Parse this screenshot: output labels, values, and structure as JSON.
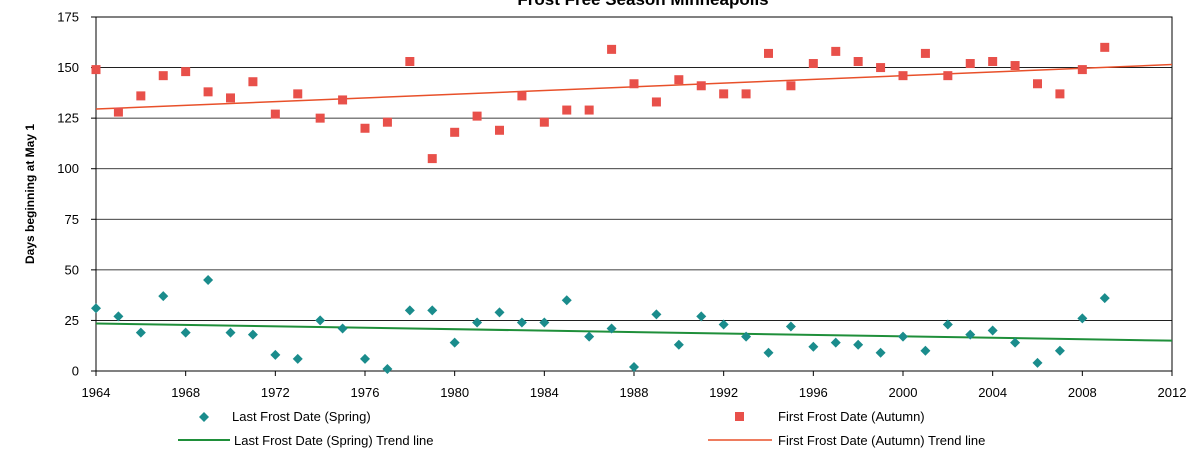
{
  "chart_data": {
    "type": "scatter",
    "title": "Frost Free Season Minneapolis",
    "xlabel": "",
    "ylabel": "Days beginning at May 1",
    "xlim": [
      1964,
      2012
    ],
    "ylim": [
      0,
      175
    ],
    "x_ticks": [
      1964,
      1968,
      1972,
      1976,
      1980,
      1984,
      1988,
      1992,
      1996,
      2000,
      2004,
      2008,
      2012
    ],
    "y_ticks": [
      0,
      25,
      50,
      75,
      100,
      125,
      150,
      175
    ],
    "grid": "horizontal",
    "legend_position": "bottom",
    "series": [
      {
        "name": "Last Frost Date (Spring)",
        "marker": "diamond",
        "color": "#1a8c8c",
        "points": [
          [
            1964,
            31
          ],
          [
            1965,
            27
          ],
          [
            1966,
            19
          ],
          [
            1967,
            37
          ],
          [
            1968,
            19
          ],
          [
            1969,
            45
          ],
          [
            1970,
            19
          ],
          [
            1971,
            18
          ],
          [
            1972,
            8
          ],
          [
            1973,
            6
          ],
          [
            1974,
            25
          ],
          [
            1975,
            21
          ],
          [
            1976,
            6
          ],
          [
            1977,
            1
          ],
          [
            1978,
            30
          ],
          [
            1979,
            30
          ],
          [
            1980,
            14
          ],
          [
            1981,
            24
          ],
          [
            1982,
            29
          ],
          [
            1983,
            24
          ],
          [
            1984,
            24
          ],
          [
            1985,
            35
          ],
          [
            1986,
            17
          ],
          [
            1987,
            21
          ],
          [
            1988,
            2
          ],
          [
            1989,
            28
          ],
          [
            1990,
            13
          ],
          [
            1991,
            27
          ],
          [
            1992,
            23
          ],
          [
            1993,
            17
          ],
          [
            1994,
            9
          ],
          [
            1995,
            22
          ],
          [
            1996,
            12
          ],
          [
            1997,
            14
          ],
          [
            1998,
            13
          ],
          [
            1999,
            9
          ],
          [
            2000,
            17
          ],
          [
            2001,
            10
          ],
          [
            2002,
            23
          ],
          [
            2003,
            18
          ],
          [
            2004,
            20
          ],
          [
            2005,
            14
          ],
          [
            2006,
            4
          ],
          [
            2007,
            10
          ],
          [
            2008,
            26
          ],
          [
            2009,
            36
          ]
        ]
      },
      {
        "name": "First Frost Date (Autumn)",
        "marker": "square",
        "color": "#e8504a",
        "points": [
          [
            1964,
            149
          ],
          [
            1965,
            128
          ],
          [
            1966,
            136
          ],
          [
            1967,
            146
          ],
          [
            1968,
            148
          ],
          [
            1969,
            138
          ],
          [
            1970,
            135
          ],
          [
            1971,
            143
          ],
          [
            1972,
            127
          ],
          [
            1973,
            137
          ],
          [
            1974,
            125
          ],
          [
            1975,
            134
          ],
          [
            1976,
            120
          ],
          [
            1977,
            123
          ],
          [
            1978,
            153
          ],
          [
            1979,
            105
          ],
          [
            1980,
            118
          ],
          [
            1981,
            126
          ],
          [
            1982,
            119
          ],
          [
            1983,
            136
          ],
          [
            1984,
            123
          ],
          [
            1985,
            129
          ],
          [
            1986,
            129
          ],
          [
            1987,
            159
          ],
          [
            1988,
            142
          ],
          [
            1989,
            133
          ],
          [
            1990,
            144
          ],
          [
            1991,
            141
          ],
          [
            1992,
            137
          ],
          [
            1993,
            137
          ],
          [
            1994,
            157
          ],
          [
            1995,
            141
          ],
          [
            1996,
            152
          ],
          [
            1997,
            158
          ],
          [
            1998,
            153
          ],
          [
            1999,
            150
          ],
          [
            2000,
            146
          ],
          [
            2001,
            157
          ],
          [
            2002,
            146
          ],
          [
            2003,
            152
          ],
          [
            2004,
            153
          ],
          [
            2005,
            151
          ],
          [
            2006,
            142
          ],
          [
            2007,
            137
          ],
          [
            2008,
            149
          ],
          [
            2009,
            160
          ]
        ]
      }
    ],
    "trend_lines": [
      {
        "name": "Last  Frost Date (Spring) Trend line",
        "color": "#1f8f3a",
        "from": [
          1964,
          23.5
        ],
        "to": [
          2012,
          15
        ]
      },
      {
        "name": "First Frost Date (Autumn) Trend line",
        "color": "#e8502a",
        "from": [
          1964,
          129.5
        ],
        "to": [
          2012,
          151.5
        ]
      }
    ]
  }
}
